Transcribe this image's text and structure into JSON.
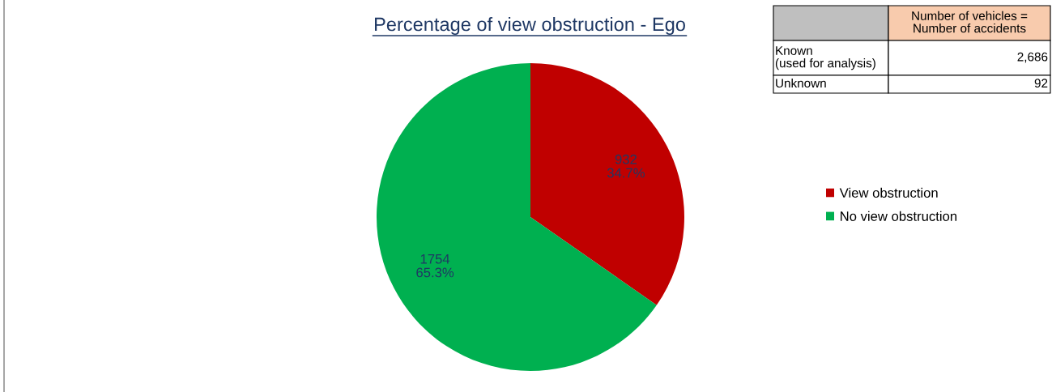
{
  "chart_data": {
    "type": "pie",
    "title": "Percentage of view obstruction - Ego",
    "categories": [
      "View obstruction",
      "No view obstruction"
    ],
    "values": [
      932,
      1754
    ],
    "colors": [
      "#c00000",
      "#00b050"
    ],
    "value_labels": [
      "932\n34.7%",
      "1754\n65.3%"
    ],
    "legend": "right",
    "annotations": [
      "Number of vehicles =\nNumber of accidents",
      "Known\n(used for analysis)",
      "2,686",
      "Unknown",
      "92"
    ]
  }
}
